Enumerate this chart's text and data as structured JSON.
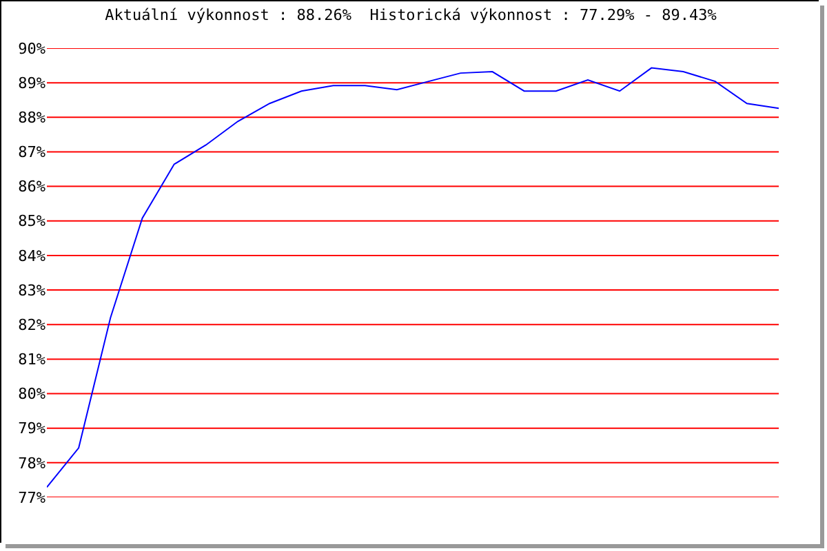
{
  "chart_data": {
    "type": "line",
    "title": "Aktuální výkonnost : 88.26%  Historická výkonnost : 77.29% - 89.43%",
    "categories": [
      null,
      null,
      null,
      null,
      null,
      null,
      null,
      null,
      null,
      null,
      null,
      null,
      null,
      null,
      null,
      null,
      null,
      null,
      null,
      null,
      null,
      null,
      null,
      null
    ],
    "series": [
      {
        "color": "#0000ff",
        "values": [
          77.29,
          78.43,
          82.2,
          85.08,
          86.64,
          87.2,
          87.88,
          88.4,
          88.76,
          88.92,
          88.92,
          88.8,
          89.04,
          89.28,
          89.32,
          88.76,
          88.76,
          89.08,
          88.76,
          89.43,
          89.32,
          89.04,
          88.4,
          88.26
        ]
      }
    ],
    "ylim": [
      77,
      90
    ],
    "yticks": [
      {
        "value": 77,
        "label": "77%"
      },
      {
        "value": 78,
        "label": "78%"
      },
      {
        "value": 79,
        "label": "79%"
      },
      {
        "value": 80,
        "label": "80%"
      },
      {
        "value": 81,
        "label": "81%"
      },
      {
        "value": 82,
        "label": "82%"
      },
      {
        "value": 83,
        "label": "83%"
      },
      {
        "value": 84,
        "label": "84%"
      },
      {
        "value": 85,
        "label": "85%"
      },
      {
        "value": 86,
        "label": "86%"
      },
      {
        "value": 87,
        "label": "87%"
      },
      {
        "value": 88,
        "label": "88%"
      },
      {
        "value": 89,
        "label": "89%"
      },
      {
        "value": 90,
        "label": "90%"
      }
    ],
    "grid": "y",
    "tick_labels": "y",
    "legend": false,
    "marker": "none",
    "line_style": "solid"
  }
}
